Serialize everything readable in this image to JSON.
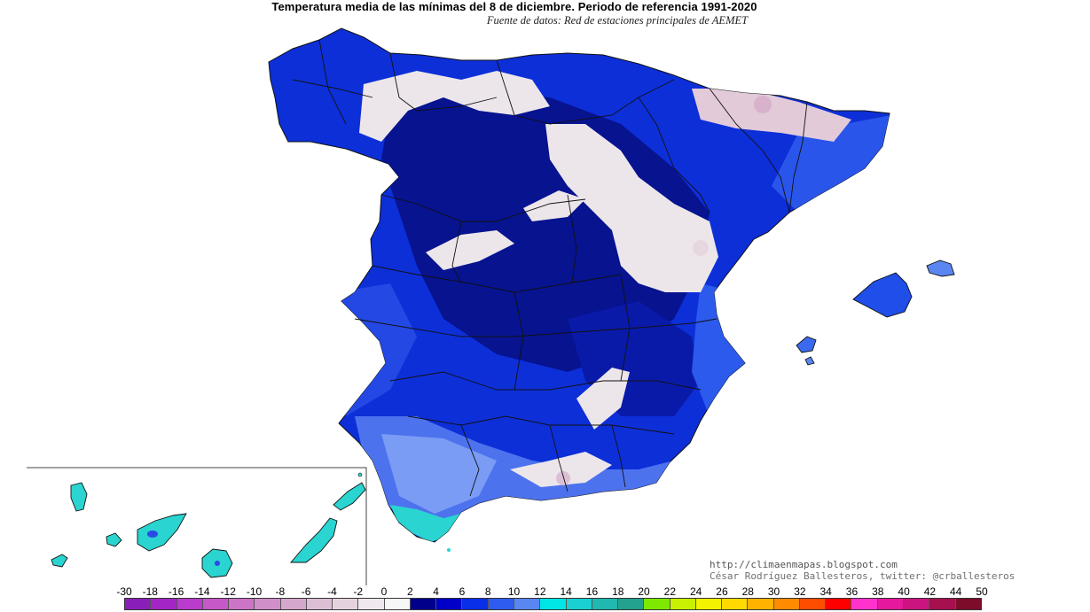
{
  "header": {
    "title": "Temperatura media de las mínimas del 8 de diciembre. Periodo de referencia 1991-2020",
    "subtitle": "Fuente de datos: Red de estaciones principales de AEMET"
  },
  "credits": {
    "url": "http://climaenmapas.blogspot.com",
    "author": "César Rodríguez Ballesteros, twitter: @crballesteros"
  },
  "legend": {
    "labels": [
      "-30",
      "-18",
      "-16",
      "-14",
      "-12",
      "-10",
      "-8",
      "-6",
      "-4",
      "-2",
      "0",
      "2",
      "4",
      "6",
      "8",
      "10",
      "12",
      "14",
      "16",
      "18",
      "20",
      "22",
      "24",
      "26",
      "28",
      "30",
      "32",
      "34",
      "36",
      "38",
      "40",
      "42",
      "44",
      "50"
    ],
    "colors": [
      "#8a1fb8",
      "#a326c4",
      "#b93ccc",
      "#c658c7",
      "#cc74c6",
      "#d08fc8",
      "#d6a7cc",
      "#dcbfd5",
      "#e4d3de",
      "#efe8ee",
      "#f7f7f7",
      "#00008b",
      "#0000c8",
      "#0a2fe8",
      "#2f5cf0",
      "#5a86f2",
      "#00e6e6",
      "#1ad0d0",
      "#20b8b0",
      "#23a28f",
      "#7fe800",
      "#c8f000",
      "#f3f300",
      "#ffd900",
      "#ffb300",
      "#ff8c00",
      "#ff4d00",
      "#ff0000",
      "#ff33cc",
      "#e6199c",
      "#cc1480",
      "#a6104f",
      "#7d0c2a"
    ]
  },
  "map": {
    "colors": {
      "sea": "#ffffff",
      "deep_blue": "#0a1aa8",
      "mid_blue": "#1b3fe0",
      "light_blue": "#5a86f2",
      "pale_blue": "#8aa6f4",
      "cyan": "#2ad4d0",
      "snow": "#ece6ea",
      "pinkish": "#d8b9cf",
      "border": "#111111"
    }
  }
}
